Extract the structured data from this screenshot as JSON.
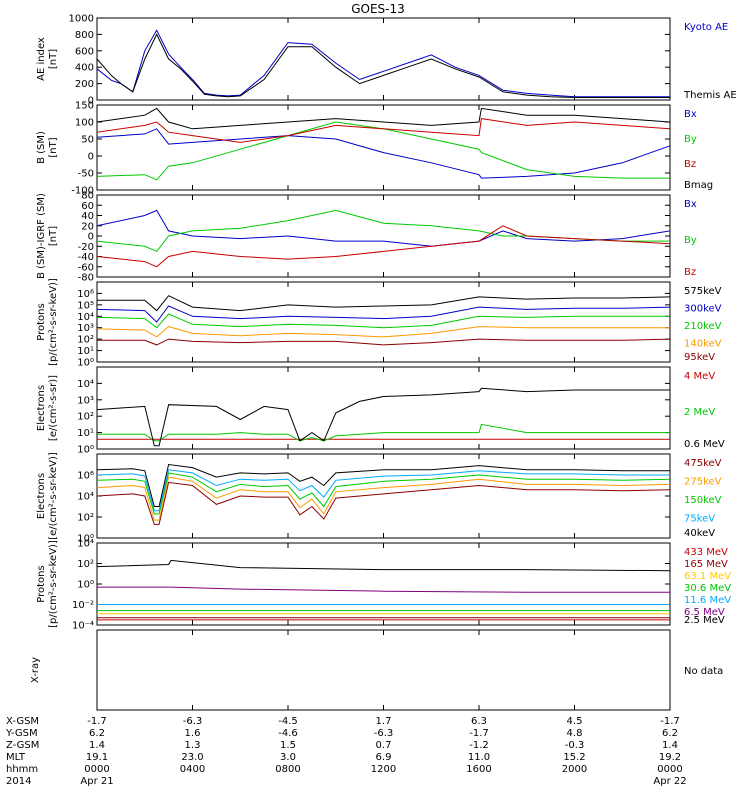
{
  "title": "GOES-13",
  "colors": {
    "black": "#000000",
    "blue": "#0000c8",
    "red": "#c80000",
    "green": "#00c800",
    "darkred": "#8b0000",
    "orange": "#ff9900",
    "cyan": "#00aaff",
    "gold": "#ffcc00",
    "purple": "#800080",
    "axis": "#000000"
  },
  "chart_data": [
    {
      "id": "ae",
      "type": "line",
      "ylabel": [
        "AE index",
        "[nT]"
      ],
      "ylim": [
        0,
        1000
      ],
      "yticks": [
        "0",
        "200",
        "400",
        "600",
        "800",
        "1000"
      ],
      "x": [
        0,
        0.6,
        1,
        1.5,
        2,
        2.5,
        3,
        3.5,
        4,
        4.5,
        5,
        5.5,
        6,
        7,
        8,
        9,
        10,
        11,
        12,
        13,
        14,
        15,
        16,
        17,
        18,
        19,
        20,
        21,
        22,
        23,
        24
      ],
      "series": [
        {
          "name": "Kyoto AE",
          "color": "blue",
          "values": [
            380,
            240,
            200,
            100,
            600,
            850,
            560,
            400,
            250,
            80,
            60,
            50,
            60,
            300,
            700,
            680,
            450,
            250,
            350,
            450,
            550,
            400,
            300,
            120,
            80,
            60,
            40,
            40,
            40,
            40,
            40
          ]
        },
        {
          "name": "Themis AE",
          "color": "black",
          "values": [
            500,
            300,
            200,
            100,
            500,
            800,
            500,
            380,
            230,
            70,
            50,
            40,
            50,
            250,
            650,
            650,
            400,
            200,
            300,
            400,
            500,
            380,
            280,
            100,
            60,
            40,
            30,
            30,
            30,
            30,
            30
          ]
        }
      ]
    },
    {
      "id": "b",
      "type": "line",
      "ylabel": [
        "B (SM)",
        "[nT]"
      ],
      "ylim": [
        -100,
        150
      ],
      "yticks": [
        "-100",
        "-50",
        "0",
        "50",
        "100",
        "150"
      ],
      "x": [
        0,
        2,
        2.5,
        3,
        4,
        6,
        8,
        10,
        12,
        14,
        16,
        16.1,
        18,
        20,
        22,
        24
      ],
      "series": [
        {
          "name": "Bx",
          "color": "blue",
          "values": [
            55,
            65,
            80,
            35,
            40,
            50,
            60,
            50,
            10,
            -20,
            -55,
            -65,
            -60,
            -50,
            -20,
            30
          ]
        },
        {
          "name": "By",
          "color": "green",
          "values": [
            -60,
            -55,
            -70,
            -30,
            -20,
            20,
            60,
            100,
            80,
            50,
            20,
            10,
            -40,
            -60,
            -65,
            -65
          ]
        },
        {
          "name": "Bz",
          "color": "red",
          "values": [
            70,
            90,
            100,
            70,
            60,
            40,
            60,
            90,
            80,
            70,
            60,
            110,
            90,
            100,
            90,
            80
          ]
        },
        {
          "name": "Bmag",
          "color": "black",
          "values": [
            100,
            120,
            140,
            100,
            80,
            90,
            100,
            110,
            100,
            90,
            100,
            140,
            120,
            120,
            110,
            100
          ]
        }
      ]
    },
    {
      "id": "bres",
      "type": "line",
      "ylabel": [
        "B (SM)-IGRF (SM)",
        "[nT]"
      ],
      "ylim": [
        -80,
        80
      ],
      "yticks": [
        "-80",
        "-60",
        "-40",
        "-20",
        "0",
        "20",
        "40",
        "60",
        "80"
      ],
      "x": [
        0,
        2,
        2.5,
        3,
        4,
        6,
        8,
        10,
        12,
        14,
        16,
        17,
        18,
        20,
        22,
        24
      ],
      "series": [
        {
          "name": "Bx",
          "color": "blue",
          "values": [
            20,
            40,
            50,
            10,
            0,
            -5,
            0,
            -10,
            -10,
            -20,
            -10,
            10,
            -5,
            -10,
            -5,
            10
          ]
        },
        {
          "name": "By",
          "color": "green",
          "values": [
            -10,
            -20,
            -30,
            0,
            10,
            15,
            30,
            50,
            25,
            20,
            10,
            0,
            0,
            -5,
            -10,
            -10
          ]
        },
        {
          "name": "Bz",
          "color": "red",
          "values": [
            -40,
            -50,
            -60,
            -40,
            -30,
            -40,
            -45,
            -40,
            -30,
            -20,
            -10,
            20,
            0,
            -5,
            -10,
            -15
          ]
        }
      ]
    },
    {
      "id": "protons_low",
      "type": "line",
      "ylabel": [
        "Protons",
        "[p/(cm²-s-sr-keV)]"
      ],
      "ylim": [
        0,
        7
      ],
      "log": true,
      "yticks": [
        "10⁰",
        "10¹",
        "10²",
        "10³",
        "10⁴",
        "10⁵",
        "10⁶"
      ],
      "ytick_values": [
        0,
        1,
        2,
        3,
        4,
        5,
        6
      ],
      "x": [
        0,
        2,
        2.5,
        3,
        4,
        6,
        8,
        10,
        12,
        14,
        16,
        18,
        20,
        22,
        24
      ],
      "series": [
        {
          "name": "575keV",
          "color": "black",
          "values": [
            5.4,
            5.4,
            4.5,
            5.8,
            4.8,
            4.5,
            5.0,
            4.8,
            4.9,
            5.0,
            5.7,
            5.5,
            5.6,
            5.6,
            5.7
          ]
        },
        {
          "name": "300keV",
          "color": "blue",
          "values": [
            4.6,
            4.5,
            3.5,
            4.9,
            4.0,
            3.8,
            4.0,
            3.9,
            3.8,
            4.0,
            4.8,
            4.6,
            4.7,
            4.7,
            4.8
          ]
        },
        {
          "name": "210keV",
          "color": "green",
          "values": [
            3.9,
            3.8,
            3.0,
            4.2,
            3.3,
            3.1,
            3.3,
            3.2,
            3.0,
            3.2,
            4.0,
            3.9,
            4.0,
            4.0,
            4.0
          ]
        },
        {
          "name": "140keV",
          "color": "orange",
          "values": [
            2.9,
            2.8,
            2.2,
            3.1,
            2.5,
            2.3,
            2.5,
            2.4,
            2.2,
            2.5,
            3.1,
            3.0,
            3.0,
            3.0,
            3.0
          ]
        },
        {
          "name": "95keV",
          "color": "darkred",
          "values": [
            1.9,
            1.9,
            1.5,
            2.0,
            1.8,
            1.7,
            1.8,
            1.8,
            1.5,
            1.7,
            2.0,
            1.9,
            1.9,
            1.9,
            2.0
          ]
        }
      ]
    },
    {
      "id": "electrons_mev",
      "type": "line",
      "ylabel": [
        "Electrons",
        "[e/(cm²-s-sr)]"
      ],
      "ylim": [
        0,
        5
      ],
      "log": true,
      "yticks": [
        "10⁰",
        "10¹",
        "10²",
        "10³",
        "10⁴"
      ],
      "ytick_values": [
        0,
        1,
        2,
        3,
        4
      ],
      "x": [
        0,
        2,
        2.4,
        2.6,
        3,
        5,
        6,
        7,
        8,
        8.5,
        9,
        9.5,
        10,
        11,
        12,
        14,
        16,
        16.1,
        18,
        20,
        22,
        24
      ],
      "series": [
        {
          "name": "4 MeV",
          "color": "red",
          "values": [
            0.6,
            0.6,
            0.6,
            0.6,
            0.6,
            0.6,
            0.6,
            0.6,
            0.6,
            0.6,
            0.6,
            0.6,
            0.6,
            0.6,
            0.6,
            0.6,
            0.6,
            0.6,
            0.6,
            0.6,
            0.6,
            0.6
          ]
        },
        {
          "name": "2 MeV",
          "color": "green",
          "values": [
            0.9,
            0.9,
            0.5,
            0.5,
            0.9,
            0.9,
            1.0,
            0.9,
            0.9,
            0.5,
            0.7,
            0.5,
            0.8,
            0.9,
            1.0,
            1.0,
            1.0,
            1.5,
            1.0,
            1.0,
            1.0,
            1.0
          ]
        },
        {
          "name": "0.6 MeV",
          "color": "black",
          "values": [
            2.4,
            2.6,
            0.2,
            0.2,
            2.7,
            2.6,
            1.8,
            2.6,
            2.4,
            0.5,
            1.0,
            0.5,
            2.2,
            2.9,
            3.2,
            3.3,
            3.5,
            3.7,
            3.5,
            3.6,
            3.6,
            3.6
          ]
        }
      ]
    },
    {
      "id": "electrons_kev",
      "type": "line",
      "ylabel": [
        "Electrons",
        "[e/(cm²-s-sr-keV)]"
      ],
      "ylim": [
        0,
        8
      ],
      "log": true,
      "yticks": [
        "10⁰",
        "10²",
        "10⁴",
        "10⁶"
      ],
      "ytick_values": [
        0,
        2,
        4,
        6
      ],
      "x": [
        0,
        1.5,
        2,
        2.4,
        2.6,
        3,
        4,
        5,
        6,
        7,
        8,
        8.5,
        9,
        9.5,
        10,
        12,
        14,
        16,
        18,
        20,
        22,
        24
      ],
      "series": [
        {
          "name": "475keV",
          "color": "darkred",
          "values": [
            4.0,
            4.2,
            4.0,
            1.3,
            1.3,
            5.3,
            5.0,
            3.2,
            4.0,
            3.9,
            3.9,
            2.2,
            3.0,
            1.8,
            3.8,
            4.2,
            4.6,
            5.0,
            4.6,
            4.6,
            4.5,
            4.6
          ]
        },
        {
          "name": "275keV",
          "color": "orange",
          "values": [
            4.8,
            5.0,
            4.8,
            1.7,
            1.7,
            5.8,
            5.4,
            3.8,
            4.6,
            4.4,
            4.4,
            2.9,
            3.7,
            2.3,
            4.4,
            4.8,
            5.1,
            5.6,
            5.1,
            5.1,
            5.0,
            5.1
          ]
        },
        {
          "name": "150keV",
          "color": "green",
          "values": [
            5.5,
            5.6,
            5.4,
            2.3,
            2.3,
            6.2,
            5.8,
            4.4,
            5.1,
            4.9,
            5.0,
            3.7,
            4.3,
            3.0,
            4.9,
            5.4,
            5.6,
            6.0,
            5.6,
            5.6,
            5.5,
            5.6
          ]
        },
        {
          "name": "75keV",
          "color": "cyan",
          "values": [
            6.0,
            6.1,
            5.9,
            2.6,
            2.6,
            6.5,
            6.2,
            5.0,
            5.6,
            5.5,
            5.6,
            4.5,
            5.0,
            3.9,
            5.5,
            5.9,
            6.0,
            6.4,
            6.1,
            6.1,
            6.0,
            6.0
          ]
        },
        {
          "name": "40keV",
          "color": "black",
          "values": [
            6.5,
            6.6,
            6.4,
            3.0,
            3.0,
            7.0,
            6.7,
            5.8,
            6.2,
            6.1,
            6.2,
            5.4,
            5.8,
            5.0,
            6.2,
            6.5,
            6.5,
            6.9,
            6.5,
            6.5,
            6.4,
            6.4
          ]
        }
      ]
    },
    {
      "id": "protons_high",
      "type": "line",
      "ylabel": [
        "Protons",
        "[p/(cm²-s-sr-keV)]"
      ],
      "ylim": [
        -4,
        4
      ],
      "log": true,
      "yticks": [
        "10⁻⁴",
        "10⁻²",
        "10⁰",
        "10²",
        "10⁴"
      ],
      "ytick_values": [
        -4,
        -2,
        0,
        2,
        4
      ],
      "x": [
        0,
        3,
        3.1,
        6,
        12,
        18,
        24
      ],
      "series": [
        {
          "name": "433 MeV",
          "color": "red",
          "values": [
            -3.5,
            -3.5,
            -3.5,
            -3.5,
            -3.5,
            -3.5,
            -3.5
          ]
        },
        {
          "name": "165 MeV",
          "color": "darkred",
          "values": [
            -3.3,
            -3.3,
            -3.3,
            -3.3,
            -3.3,
            -3.3,
            -3.3
          ]
        },
        {
          "name": "63.1 MeV",
          "color": "gold",
          "values": [
            -2.9,
            -2.9,
            -2.9,
            -2.9,
            -2.9,
            -2.9,
            -2.9
          ]
        },
        {
          "name": "30.6 MeV",
          "color": "green",
          "values": [
            -2.6,
            -2.6,
            -2.6,
            -2.6,
            -2.6,
            -2.6,
            -2.6
          ]
        },
        {
          "name": "11.6 MeV",
          "color": "cyan",
          "values": [
            -2.0,
            -2.0,
            -2.0,
            -2.0,
            -2.0,
            -2.0,
            -2.0
          ]
        },
        {
          "name": "6.5 MeV",
          "color": "purple",
          "values": [
            -0.3,
            -0.3,
            -0.3,
            -0.5,
            -0.7,
            -0.8,
            -0.8
          ]
        },
        {
          "name": "2.5 MeV",
          "color": "black",
          "values": [
            1.7,
            1.9,
            2.3,
            1.6,
            1.4,
            1.4,
            1.3
          ]
        }
      ]
    },
    {
      "id": "xray",
      "type": "line",
      "ylabel": [
        "X-ray"
      ],
      "nodata": "No data",
      "series": []
    }
  ],
  "xaxis": {
    "xlim": [
      0,
      24
    ],
    "ticks": [
      0,
      4,
      8,
      12,
      16,
      20,
      24
    ],
    "rows": [
      {
        "label": "X-GSM",
        "values": [
          "-1.7",
          "-6.3",
          "-4.5",
          "1.7",
          "6.3",
          "4.5",
          "-1.7"
        ]
      },
      {
        "label": "Y-GSM",
        "values": [
          "6.2",
          "1.6",
          "-4.6",
          "-6.3",
          "-1.7",
          "4.8",
          "6.2"
        ]
      },
      {
        "label": "Z-GSM",
        "values": [
          "1.4",
          "1.3",
          "1.5",
          "0.7",
          "-1.2",
          "-0.3",
          "1.4"
        ]
      },
      {
        "label": "MLT",
        "values": [
          "19.1",
          "23.0",
          "3.0",
          "6.9",
          "11.0",
          "15.2",
          "19.2"
        ]
      },
      {
        "label": "hhmm",
        "values": [
          "0000",
          "0400",
          "0800",
          "1200",
          "1600",
          "2000",
          "0000"
        ]
      },
      {
        "label": "2014",
        "values": [
          "Apr 21",
          "",
          "",
          "",
          "",
          "",
          "Apr 22"
        ]
      }
    ]
  }
}
